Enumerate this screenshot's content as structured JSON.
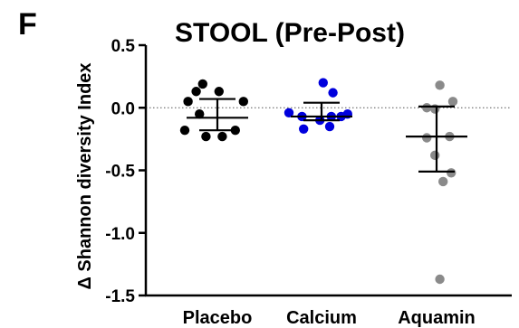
{
  "panel_label": "F",
  "chart_data": {
    "type": "scatter",
    "title": "STOOL (Pre-Post)",
    "ylabel": "Δ Shannon diversity Index",
    "xlabel": "",
    "ylim": [
      -1.5,
      0.5
    ],
    "yticks": [
      0.5,
      0.0,
      -0.5,
      -1.0,
      -1.5
    ],
    "ytick_labels": [
      "0.5",
      "0.0",
      "-0.5",
      "-1.0",
      "-1.5"
    ],
    "reference_line": 0,
    "grid": false,
    "legend": "none",
    "categories": [
      "Placebo",
      "Calcium",
      "Aquamin"
    ],
    "series": [
      {
        "category": "Placebo",
        "color": "#000000",
        "points": [
          {
            "offset": -0.45,
            "y": 0.19
          },
          {
            "offset": -0.65,
            "y": 0.13
          },
          {
            "offset": 0.05,
            "y": 0.13
          },
          {
            "offset": -0.9,
            "y": 0.05
          },
          {
            "offset": 0.8,
            "y": 0.05
          },
          {
            "offset": -0.55,
            "y": -0.05
          },
          {
            "offset": 0.55,
            "y": -0.18
          },
          {
            "offset": -1.0,
            "y": -0.18
          },
          {
            "offset": -0.35,
            "y": -0.23
          },
          {
            "offset": 0.15,
            "y": -0.23
          }
        ],
        "mean": -0.08,
        "sd_upper": 0.07,
        "sd_lower": -0.18
      },
      {
        "category": "Calcium",
        "color": "#0000dd",
        "points": [
          {
            "offset": 0.05,
            "y": 0.2
          },
          {
            "offset": 0.35,
            "y": 0.12
          },
          {
            "offset": -1.0,
            "y": -0.04
          },
          {
            "offset": 0.8,
            "y": -0.05
          },
          {
            "offset": -0.6,
            "y": -0.07
          },
          {
            "offset": 0.3,
            "y": -0.07
          },
          {
            "offset": 0.6,
            "y": -0.07
          },
          {
            "offset": -0.05,
            "y": -0.1
          },
          {
            "offset": -0.55,
            "y": -0.17
          },
          {
            "offset": 0.25,
            "y": -0.15
          }
        ],
        "mean": -0.07,
        "sd_upper": 0.04,
        "sd_lower": -0.1
      },
      {
        "category": "Aquamin",
        "color": "#8a8a8a",
        "points": [
          {
            "offset": 0.1,
            "y": 0.18
          },
          {
            "offset": 0.5,
            "y": 0.05
          },
          {
            "offset": -0.3,
            "y": 0.0
          },
          {
            "offset": -0.05,
            "y": -0.01
          },
          {
            "offset": 0.4,
            "y": -0.23
          },
          {
            "offset": -0.3,
            "y": -0.24
          },
          {
            "offset": -0.05,
            "y": -0.38
          },
          {
            "offset": 0.45,
            "y": -0.52
          },
          {
            "offset": 0.2,
            "y": -0.59
          },
          {
            "offset": 0.1,
            "y": -1.37
          }
        ],
        "mean": -0.23,
        "sd_upper": 0.01,
        "sd_lower": -0.51
      }
    ]
  }
}
